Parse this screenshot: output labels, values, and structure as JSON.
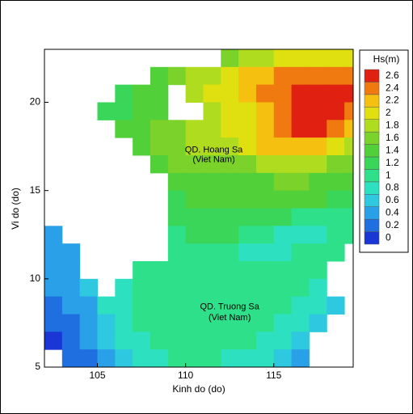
{
  "chart_data": {
    "type": "heatmap",
    "xlabel": "Kinh do (do)",
    "ylabel": "Vi do (do)",
    "xlim": [
      102,
      119.5
    ],
    "ylim": [
      5,
      23
    ],
    "xticks": [
      105,
      110,
      115
    ],
    "yticks": [
      5,
      10,
      15,
      20
    ],
    "colorbar": {
      "title": "Hs(m)",
      "levels": [
        0,
        0.2,
        0.4,
        0.6,
        0.8,
        1,
        1.2,
        1.4,
        1.6,
        1.8,
        2,
        2.2,
        2.4,
        2.6
      ],
      "colors": [
        "#1a37d6",
        "#1f6fe0",
        "#2aa0e8",
        "#2ec9e0",
        "#2de0c0",
        "#2ee08a",
        "#3ad65a",
        "#52d03a",
        "#7ad22a",
        "#b0dc20",
        "#e0e010",
        "#f5c010",
        "#f07a10",
        "#e02010"
      ]
    },
    "annotations": [
      {
        "text": "QD. Hoang Sa",
        "x": 111.6,
        "y": 17.3
      },
      {
        "text": "(Viet Nam)",
        "x": 111.6,
        "y": 16.75
      },
      {
        "text": "QD. Truong Sa",
        "x": 112.5,
        "y": 8.4
      },
      {
        "text": "(Viet Nam)",
        "x": 112.5,
        "y": 7.8
      }
    ],
    "field": {
      "lon": [
        102.5,
        103.5,
        104.5,
        105.5,
        106.5,
        107.5,
        108.5,
        109.5,
        110.5,
        111.5,
        112.5,
        113.5,
        114.5,
        115.5,
        116.5,
        117.5,
        118.5,
        119.5
      ],
      "lat": [
        22.5,
        21.5,
        20.5,
        19.5,
        18.5,
        17.5,
        16.5,
        15.5,
        14.5,
        13.5,
        12.5,
        11.5,
        10.5,
        9.5,
        8.5,
        7.5,
        6.5,
        5.5
      ],
      "values": [
        [
          null,
          null,
          null,
          null,
          null,
          null,
          null,
          null,
          null,
          null,
          1.6,
          1.8,
          1.9,
          2.0,
          2.1,
          2.1,
          2.0,
          2.0
        ],
        [
          null,
          null,
          null,
          null,
          null,
          null,
          1.4,
          1.6,
          1.8,
          1.9,
          2.0,
          2.2,
          2.3,
          2.4,
          2.5,
          2.5,
          2.5,
          2.4
        ],
        [
          null,
          null,
          null,
          null,
          1.3,
          1.4,
          1.5,
          null,
          1.8,
          2.0,
          2.1,
          2.3,
          2.4,
          2.5,
          2.6,
          2.6,
          2.6,
          2.6
        ],
        [
          null,
          null,
          null,
          1.2,
          1.3,
          1.4,
          1.5,
          null,
          null,
          1.9,
          2.0,
          2.1,
          2.3,
          2.5,
          2.6,
          2.7,
          2.6,
          2.5
        ],
        [
          null,
          null,
          null,
          null,
          1.4,
          1.5,
          1.6,
          1.7,
          1.8,
          1.9,
          2.0,
          2.1,
          2.3,
          2.5,
          2.6,
          2.6,
          2.5,
          2.3
        ],
        [
          null,
          null,
          null,
          null,
          null,
          1.5,
          1.6,
          1.7,
          1.8,
          1.8,
          1.9,
          2.0,
          2.2,
          2.3,
          2.3,
          2.2,
          2.0,
          1.9
        ],
        [
          null,
          null,
          null,
          null,
          null,
          null,
          1.5,
          1.6,
          1.6,
          1.7,
          1.7,
          1.7,
          1.8,
          1.9,
          1.9,
          1.8,
          1.7,
          1.6
        ],
        [
          null,
          null,
          null,
          null,
          null,
          null,
          null,
          1.4,
          1.5,
          1.5,
          1.5,
          1.5,
          1.5,
          1.6,
          1.6,
          1.5,
          1.5,
          1.4
        ],
        [
          null,
          null,
          null,
          null,
          null,
          null,
          null,
          1.3,
          1.4,
          1.4,
          1.4,
          1.4,
          1.4,
          1.5,
          1.5,
          1.4,
          1.3,
          1.2
        ],
        [
          null,
          null,
          null,
          null,
          null,
          null,
          null,
          1.2,
          1.3,
          1.3,
          1.3,
          1.3,
          1.2,
          1.2,
          1.1,
          1.1,
          1.0,
          1.0
        ],
        [
          0.4,
          null,
          null,
          null,
          null,
          null,
          null,
          1.1,
          1.2,
          1.2,
          1.2,
          1.1,
          1.0,
          0.9,
          0.9,
          0.9,
          1.0,
          1.0
        ],
        [
          0.4,
          0.4,
          null,
          null,
          null,
          null,
          null,
          1.1,
          1.1,
          1.1,
          1.0,
          0.9,
          0.9,
          0.9,
          1.0,
          1.1,
          1.1,
          null
        ],
        [
          0.4,
          0.5,
          null,
          null,
          null,
          1.0,
          1.1,
          1.1,
          1.1,
          1.1,
          1.0,
          1.0,
          1.0,
          1.0,
          1.0,
          1.0,
          null,
          null
        ],
        [
          0.4,
          0.5,
          0.6,
          null,
          0.9,
          1.0,
          1.1,
          1.1,
          1.1,
          1.1,
          1.1,
          1.0,
          1.0,
          1.1,
          1.0,
          0.8,
          null,
          null
        ],
        [
          0.3,
          0.4,
          0.5,
          0.8,
          0.9,
          1.0,
          1.0,
          1.1,
          1.1,
          1.1,
          1.1,
          1.0,
          1.0,
          1.0,
          0.9,
          0.8,
          0.6,
          null
        ],
        [
          0.2,
          0.3,
          0.5,
          0.7,
          0.9,
          1.0,
          1.0,
          1.0,
          1.1,
          1.1,
          1.1,
          1.0,
          1.0,
          0.9,
          0.8,
          0.6,
          null,
          null
        ],
        [
          0.1,
          0.2,
          0.4,
          0.6,
          0.8,
          0.9,
          1.0,
          1.0,
          1.0,
          1.0,
          1.0,
          1.0,
          0.9,
          0.8,
          0.6,
          null,
          null,
          null
        ],
        [
          null,
          0.2,
          0.3,
          0.5,
          0.7,
          0.8,
          0.9,
          1.0,
          1.0,
          1.0,
          0.9,
          0.9,
          0.8,
          0.7,
          0.5,
          null,
          null,
          null
        ]
      ]
    }
  }
}
